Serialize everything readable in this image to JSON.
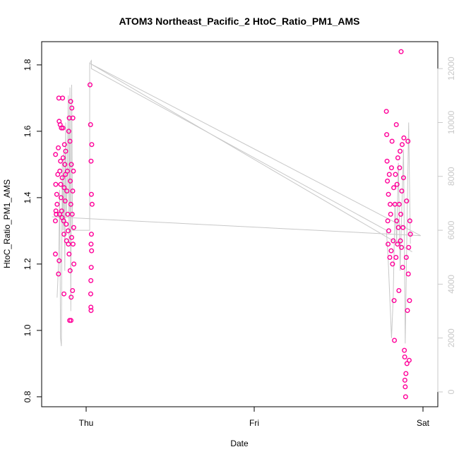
{
  "chart_data": {
    "type": "scatter",
    "title": "ATOM3 Northeast_Pacific_2 HtoC_Ratio_PM1_AMS",
    "xlabel": "Date",
    "ylabel": "HtoC_Ratio_PM1_AMS",
    "x_ticks": [
      "Thu",
      "Fri",
      "Sat"
    ],
    "y_ticks": [
      "0.8",
      "1.0",
      "1.2",
      "1.4",
      "1.6",
      "1.8"
    ],
    "y_ticks_right": [
      "0",
      "2000",
      "4000",
      "6000",
      "8000",
      "10000",
      "12000"
    ],
    "ylim": [
      0.77,
      1.87
    ],
    "y2lim": [
      -550,
      13000
    ],
    "xlim": [
      -0.26,
      2.05
    ],
    "colors": {
      "points": "#ff0099",
      "altitude_line": "#c8c8c8",
      "right_axis": "#c8c8c8"
    },
    "series": [
      {
        "name": "HtoC_Ratio_PM1_AMS",
        "points": [
          [
            -0.18,
            1.33
          ],
          [
            -0.18,
            1.23
          ],
          [
            -0.179,
            1.53
          ],
          [
            -0.178,
            1.44
          ],
          [
            -0.177,
            1.36
          ],
          [
            -0.175,
            1.35
          ],
          [
            -0.172,
            1.41
          ],
          [
            -0.17,
            1.38
          ],
          [
            -0.166,
            1.47
          ],
          [
            -0.163,
            1.55
          ],
          [
            -0.162,
            1.17
          ],
          [
            -0.16,
            1.7
          ],
          [
            -0.158,
            1.63
          ],
          [
            -0.158,
            1.21
          ],
          [
            -0.156,
            1.35
          ],
          [
            -0.154,
            1.48
          ],
          [
            -0.152,
            1.62
          ],
          [
            -0.15,
            1.51
          ],
          [
            -0.149,
            1.44
          ],
          [
            -0.147,
            1.4
          ],
          [
            -0.145,
            1.61
          ],
          [
            -0.143,
            1.36
          ],
          [
            -0.141,
            1.34
          ],
          [
            -0.14,
            1.46
          ],
          [
            -0.138,
            1.7
          ],
          [
            -0.136,
            1.61
          ],
          [
            -0.135,
            1.52
          ],
          [
            -0.132,
            1.33
          ],
          [
            -0.13,
            1.29
          ],
          [
            -0.13,
            1.11
          ],
          [
            -0.129,
            1.43
          ],
          [
            -0.127,
            1.56
          ],
          [
            -0.125,
            1.5
          ],
          [
            -0.123,
            1.39
          ],
          [
            -0.121,
            1.47
          ],
          [
            -0.12,
            1.54
          ],
          [
            -0.117,
            1.32
          ],
          [
            -0.115,
            1.27
          ],
          [
            -0.113,
            1.42
          ],
          [
            -0.11,
            1.48
          ],
          [
            -0.108,
            1.35
          ],
          [
            -0.106,
            1.3
          ],
          [
            -0.104,
            1.26
          ],
          [
            -0.102,
            1.6
          ],
          [
            -0.1,
            1.23
          ],
          [
            -0.099,
            1.64
          ],
          [
            -0.097,
            1.03
          ],
          [
            -0.095,
            1.57
          ],
          [
            -0.094,
            1.18
          ],
          [
            -0.093,
            1.45
          ],
          [
            -0.091,
            1.69
          ],
          [
            -0.09,
            1.38
          ],
          [
            -0.089,
            1.03
          ],
          [
            -0.088,
            1.1
          ],
          [
            -0.087,
            1.5
          ],
          [
            -0.085,
            1.28
          ],
          [
            -0.084,
            1.67
          ],
          [
            -0.082,
            1.35
          ],
          [
            -0.08,
            1.12
          ],
          [
            -0.079,
            1.42
          ],
          [
            -0.078,
            1.64
          ],
          [
            -0.077,
            1.26
          ],
          [
            -0.075,
            1.48
          ],
          [
            -0.073,
            1.31
          ],
          [
            -0.072,
            1.2
          ],
          [
            0.022,
            1.74
          ],
          [
            0.025,
            1.62
          ],
          [
            0.028,
            1.51
          ],
          [
            0.03,
            1.41
          ],
          [
            0.032,
            1.56
          ],
          [
            0.034,
            1.38
          ],
          [
            0.03,
            1.29
          ],
          [
            0.028,
            1.26
          ],
          [
            0.031,
            1.24
          ],
          [
            0.029,
            1.19
          ],
          [
            0.027,
            1.15
          ],
          [
            0.026,
            1.11
          ],
          [
            0.027,
            1.07
          ],
          [
            0.028,
            1.06
          ],
          [
            1.75,
            1.66
          ],
          [
            1.752,
            1.59
          ],
          [
            1.754,
            1.51
          ],
          [
            1.756,
            1.45
          ],
          [
            1.758,
            1.33
          ],
          [
            1.76,
            1.26
          ],
          [
            1.762,
            1.41
          ],
          [
            1.764,
            1.3
          ],
          [
            1.767,
            1.47
          ],
          [
            1.77,
            1.22
          ],
          [
            1.772,
            1.38
          ],
          [
            1.775,
            1.35
          ],
          [
            1.778,
            1.24
          ],
          [
            1.78,
            1.49
          ],
          [
            1.783,
            1.57
          ],
          [
            1.786,
            1.2
          ],
          [
            1.79,
            1.27
          ],
          [
            1.793,
            1.43
          ],
          [
            1.795,
            1.09
          ],
          [
            1.797,
            0.97
          ],
          [
            1.8,
            1.38
          ],
          [
            1.803,
            1.47
          ],
          [
            1.806,
            1.22
          ],
          [
            1.808,
            1.62
          ],
          [
            1.81,
            1.33
          ],
          [
            1.812,
            1.44
          ],
          [
            1.815,
            1.26
          ],
          [
            1.817,
            1.52
          ],
          [
            1.82,
            1.31
          ],
          [
            1.823,
            1.12
          ],
          [
            1.825,
            1.38
          ],
          [
            1.827,
            1.49
          ],
          [
            1.83,
            1.54
          ],
          [
            1.832,
            1.27
          ],
          [
            1.834,
            1.35
          ],
          [
            1.836,
            1.84
          ],
          [
            1.838,
            1.25
          ],
          [
            1.84,
            1.42
          ],
          [
            1.842,
            1.56
          ],
          [
            1.845,
            1.19
          ],
          [
            1.847,
            1.31
          ],
          [
            1.85,
            1.46
          ],
          [
            1.852,
            1.58
          ],
          [
            1.855,
            0.94
          ],
          [
            1.857,
            0.92
          ],
          [
            1.858,
            0.85
          ],
          [
            1.86,
            0.83
          ],
          [
            1.862,
            0.8
          ],
          [
            1.864,
            0.87
          ],
          [
            1.866,
            1.22
          ],
          [
            1.868,
            1.39
          ],
          [
            1.87,
            0.9
          ],
          [
            1.873,
            1.06
          ],
          [
            1.876,
            1.57
          ],
          [
            1.878,
            1.17
          ],
          [
            1.88,
            1.25
          ],
          [
            1.883,
            0.91
          ],
          [
            1.885,
            1.09
          ],
          [
            1.887,
            1.33
          ],
          [
            1.89,
            1.29
          ]
        ]
      },
      {
        "name": "altitude",
        "axis": "right",
        "points": [
          [
            -0.17,
            3500
          ],
          [
            -0.16,
            5000
          ],
          [
            -0.155,
            7500
          ],
          [
            -0.15,
            2000
          ],
          [
            -0.145,
            1700
          ],
          [
            -0.14,
            8500
          ],
          [
            -0.135,
            6000
          ],
          [
            -0.13,
            9000
          ],
          [
            -0.125,
            4500
          ],
          [
            -0.12,
            10000
          ],
          [
            -0.115,
            6500
          ],
          [
            -0.11,
            8000
          ],
          [
            -0.105,
            11000
          ],
          [
            -0.1,
            5500
          ],
          [
            -0.095,
            11300
          ],
          [
            -0.09,
            3000
          ],
          [
            -0.085,
            11400
          ],
          [
            -0.08,
            6000
          ],
          [
            0.02,
            6000
          ],
          [
            0.02,
            12200
          ],
          [
            0.03,
            12300
          ],
          [
            0.03,
            12000
          ],
          [
            1.75,
            6000
          ],
          [
            1.76,
            5000
          ],
          [
            1.78,
            2000
          ],
          [
            1.79,
            3500
          ],
          [
            1.8,
            7000
          ],
          [
            1.81,
            5500
          ],
          [
            1.82,
            8500
          ],
          [
            1.83,
            4500
          ],
          [
            1.84,
            6800
          ],
          [
            1.85,
            9000
          ],
          [
            1.86,
            1800
          ],
          [
            1.87,
            6000
          ],
          [
            1.88,
            10000
          ],
          [
            1.89,
            5500
          ]
        ]
      },
      {
        "name": "flight-track",
        "axis": "right",
        "points": [
          [
            -0.2,
            6500
          ],
          [
            1.95,
            5800
          ],
          [
            0.02,
            12200
          ],
          [
            1.9,
            5200
          ]
        ]
      }
    ]
  }
}
